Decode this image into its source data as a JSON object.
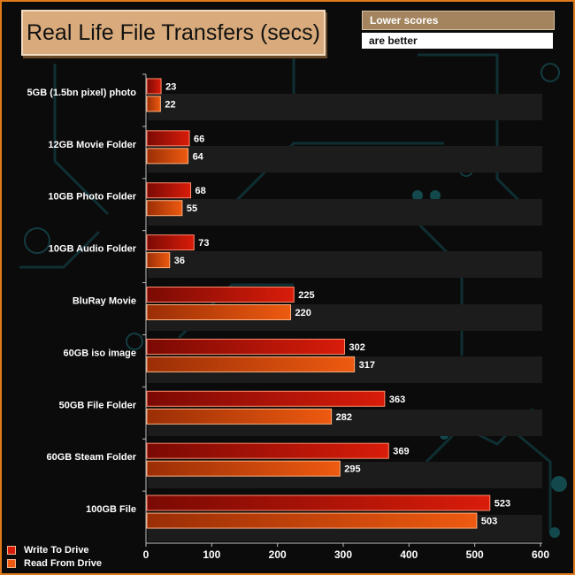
{
  "chart_data": {
    "type": "bar",
    "orientation": "horizontal",
    "title": "Real Life File Transfers (secs)",
    "notes": [
      "Lower scores",
      "are better"
    ],
    "categories": [
      "5GB (1.5bn pixel) photo",
      "12GB Movie Folder",
      "10GB Photo Folder",
      "10GB Audio Folder",
      "BluRay Movie",
      "60GB iso image",
      "50GB File Folder",
      "60GB Steam Folder",
      "100GB File"
    ],
    "series": [
      {
        "name": "Write To  Drive",
        "values": [
          23,
          66,
          68,
          73,
          225,
          302,
          363,
          369,
          523
        ],
        "color": "#d91c0a"
      },
      {
        "name": "Read From  Drive",
        "values": [
          22,
          64,
          55,
          36,
          220,
          317,
          282,
          295,
          503
        ],
        "color": "#ee5a10"
      }
    ],
    "xlim": [
      0,
      600
    ],
    "xticks": [
      0,
      100,
      200,
      300,
      400,
      500,
      600
    ],
    "grid": false,
    "legend_position": "bottom-left",
    "colors": {
      "frame": "#e07a1a",
      "background": "#0b0b0b",
      "title_box": "#d9ab7c",
      "note_box": "#a4845f"
    }
  }
}
